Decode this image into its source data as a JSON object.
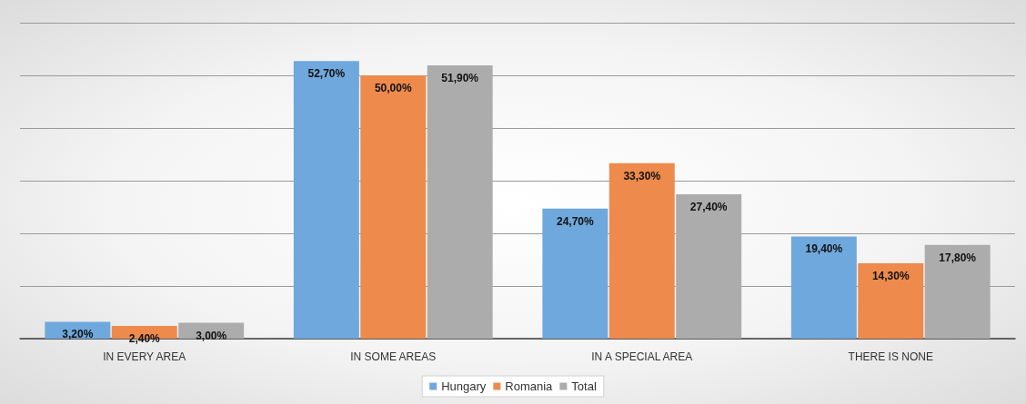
{
  "chart_data": {
    "type": "bar",
    "categories": [
      "IN EVERY AREA",
      "IN SOME AREAS",
      "IN A SPECIAL AREA",
      "THERE IS NONE"
    ],
    "series": [
      {
        "name": "Hungary",
        "color": "#6fa8dc",
        "values": [
          3.2,
          52.7,
          24.7,
          19.4
        ],
        "value_labels": [
          "3,20%",
          "52,70%",
          "24,70%",
          "19,40%"
        ]
      },
      {
        "name": "Romania",
        "color": "#ed8a4c",
        "values": [
          2.4,
          50.0,
          33.3,
          14.3
        ],
        "value_labels": [
          "2,40%",
          "50,00%",
          "33,30%",
          "14,30%"
        ]
      },
      {
        "name": "Total",
        "color": "#acacac",
        "values": [
          3.0,
          51.9,
          27.4,
          17.8
        ],
        "value_labels": [
          "3,00%",
          "51,90%",
          "27,40%",
          "17,80%"
        ]
      }
    ],
    "ylim": [
      0,
      60
    ],
    "yticks": [
      {
        "value": 0,
        "label": null
      },
      {
        "value": 10,
        "label": null
      },
      {
        "value": 20,
        "label": null
      },
      {
        "value": 30,
        "label": null
      },
      {
        "value": 40,
        "label": null
      },
      {
        "value": 50,
        "label": null
      },
      {
        "value": 60,
        "label": null
      }
    ],
    "tick_labels": "x",
    "grid": "y",
    "legend": "bottom"
  }
}
